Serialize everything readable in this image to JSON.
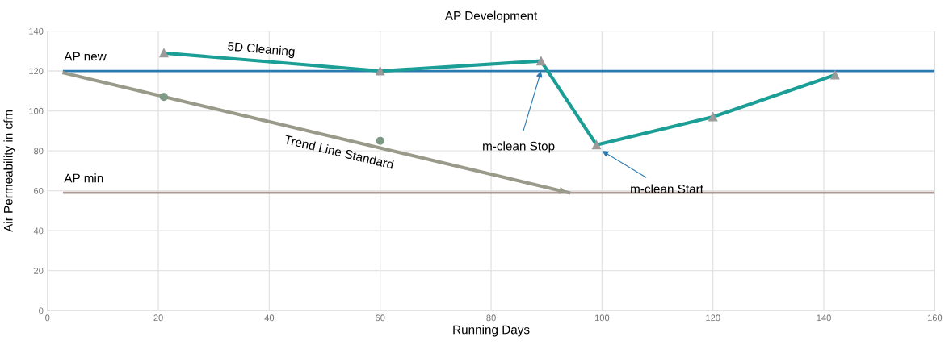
{
  "chart_data": {
    "type": "line",
    "title": "AP Development",
    "xlabel": "Running Days",
    "ylabel": "Air Permeability in cfm",
    "xlim": [
      0,
      160
    ],
    "xticks": [
      0,
      20,
      40,
      60,
      80,
      100,
      120,
      140,
      160
    ],
    "ylim": [
      0,
      140
    ],
    "yticks": [
      0,
      20,
      40,
      60,
      80,
      100,
      120,
      140
    ],
    "grid": true,
    "legend": false,
    "series": [
      {
        "name": "5D Cleaning",
        "color": "#1a9e96",
        "marker": "triangle",
        "x": [
          21,
          60,
          89,
          99,
          120,
          142
        ],
        "values": [
          129,
          120,
          125,
          83,
          97,
          118
        ]
      },
      {
        "name": "Trend Line Standard",
        "color": "#9a9a8a",
        "marker": "none",
        "x": [
          3,
          94
        ],
        "values": [
          119,
          59
        ]
      },
      {
        "type": "scatter",
        "color": "#7e9a86",
        "marker": "circle",
        "x": [
          21,
          60
        ],
        "values": [
          107,
          85
        ]
      }
    ],
    "ref_lines": [
      {
        "axis": "y",
        "value": 120,
        "label": "AP new",
        "color": "#2a7ab0"
      },
      {
        "axis": "y",
        "value": 59,
        "label": "AP min",
        "color": "#b09a94"
      }
    ],
    "annotations": [
      {
        "text": "m-clean Stop",
        "x": 89,
        "y": 120
      },
      {
        "text": "m-clean Start",
        "x": 100,
        "y": 80
      }
    ]
  }
}
